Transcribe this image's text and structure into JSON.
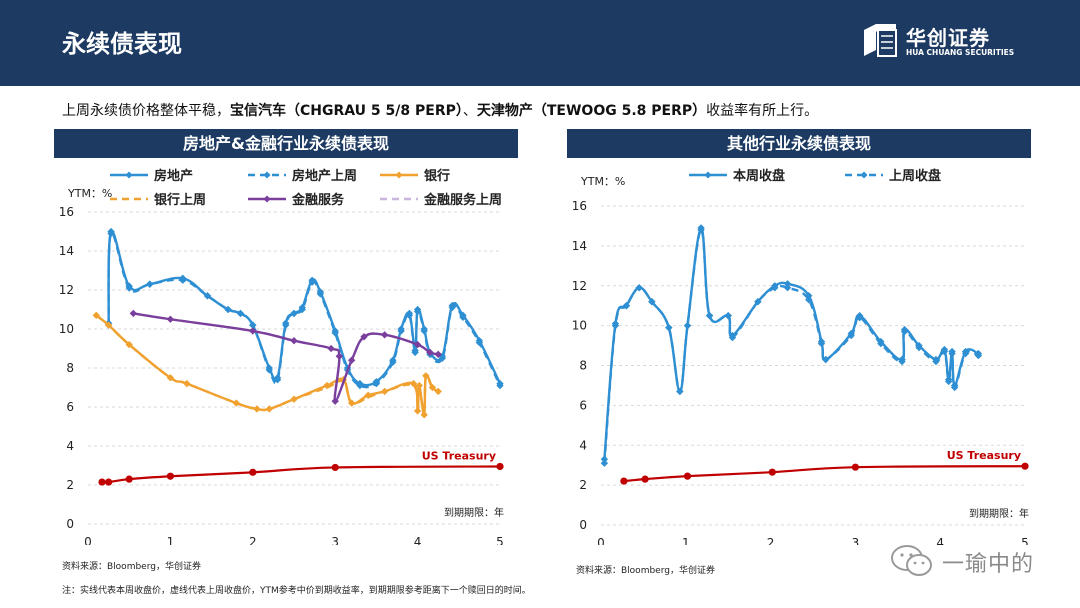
{
  "page": {
    "title": "永续债表现",
    "logo_cn": "华创证券",
    "logo_en": "HUA CHUANG SECURITIES",
    "summary_parts": [
      {
        "text": "上周永续债价格整体平稳，",
        "bold": false
      },
      {
        "text": "宝信汽车（CHGRAU 5 5/8 PERP）",
        "bold": true
      },
      {
        "text": "、",
        "bold": false
      },
      {
        "text": "天津物产（TEWOOG 5.8 PERP）",
        "bold": true
      },
      {
        "text": "收益率有所上行。",
        "bold": false
      }
    ],
    "source_left": "资料来源：Bloomberg，华创证券",
    "source_right": "资料来源：Bloomberg，华创证券",
    "note": "注：实线代表本周收盘价，虚线代表上周收盘价，YTM参考中价到期收益率，到期期限参考距离下一个赎回日的时间。",
    "watermark": "一瑜中的"
  },
  "colors": {
    "header": "#1d3a63",
    "real_estate": "#2e8fd3",
    "bank": "#f0a12f",
    "financial_services": "#7a3e9d",
    "financial_services_prev": "#c8b6dc",
    "treasury": "#c00000"
  },
  "chart_data": [
    {
      "type": "line",
      "title": "房地产&金融行业永续债表现",
      "ylabel": "YTM：%",
      "xlabel": "到期期限：年",
      "xlim": [
        0,
        5
      ],
      "ylim": [
        0,
        16
      ],
      "xticks": [
        0,
        1,
        2,
        3,
        4,
        5
      ],
      "yticks": [
        0,
        2,
        4,
        6,
        8,
        10,
        12,
        14,
        16
      ],
      "grid": "horizontal",
      "legend": [
        {
          "name": "房地产",
          "color": "#2e8fd3",
          "dash": false
        },
        {
          "name": "房地产上周",
          "color": "#2e8fd3",
          "dash": true
        },
        {
          "name": "银行",
          "color": "#f0a12f",
          "dash": false
        },
        {
          "name": "银行上周",
          "color": "#f0a12f",
          "dash": true
        },
        {
          "name": "金融服务",
          "color": "#7a3e9d",
          "dash": false
        },
        {
          "name": "金融服务上周",
          "color": "#c8b6dc",
          "dash": true
        }
      ],
      "annotation": "US Treasury",
      "series": [
        {
          "name": "房地产",
          "color": "#2e8fd3",
          "dash": false,
          "markers": true,
          "points": [
            [
              0.25,
              10.3
            ],
            [
              0.28,
              15.0
            ],
            [
              0.5,
              12.2
            ],
            [
              0.75,
              12.3
            ],
            [
              1.15,
              12.6
            ],
            [
              1.45,
              11.7
            ],
            [
              1.7,
              11.0
            ],
            [
              1.85,
              10.8
            ],
            [
              2.0,
              10.2
            ],
            [
              2.2,
              8.0
            ],
            [
              2.3,
              7.5
            ],
            [
              2.4,
              10.3
            ],
            [
              2.5,
              10.8
            ],
            [
              2.6,
              11.1
            ],
            [
              2.72,
              12.5
            ],
            [
              2.82,
              11.9
            ],
            [
              3.0,
              9.9
            ],
            [
              3.15,
              8.0
            ],
            [
              3.3,
              7.2
            ],
            [
              3.5,
              7.3
            ],
            [
              3.7,
              8.4
            ],
            [
              3.8,
              10.0
            ],
            [
              3.9,
              10.8
            ],
            [
              3.97,
              8.9
            ],
            [
              4.0,
              11.0
            ],
            [
              4.08,
              10.0
            ],
            [
              4.15,
              8.8
            ],
            [
              4.3,
              8.6
            ],
            [
              4.42,
              11.2
            ],
            [
              4.55,
              10.7
            ],
            [
              4.75,
              9.4
            ],
            [
              5.0,
              7.2
            ]
          ]
        },
        {
          "name": "房地产上周",
          "color": "#2e8fd3",
          "dash": true,
          "markers": true,
          "points": [
            [
              0.25,
              10.2
            ],
            [
              0.28,
              14.9
            ],
            [
              0.5,
              12.1
            ],
            [
              0.75,
              12.3
            ],
            [
              1.15,
              12.5
            ],
            [
              1.45,
              11.7
            ],
            [
              1.7,
              11.0
            ],
            [
              1.85,
              10.8
            ],
            [
              2.0,
              10.2
            ],
            [
              2.2,
              7.9
            ],
            [
              2.3,
              7.4
            ],
            [
              2.4,
              10.2
            ],
            [
              2.5,
              10.8
            ],
            [
              2.6,
              11.0
            ],
            [
              2.72,
              12.4
            ],
            [
              2.82,
              11.8
            ],
            [
              3.0,
              9.8
            ],
            [
              3.15,
              7.9
            ],
            [
              3.3,
              7.1
            ],
            [
              3.5,
              7.2
            ],
            [
              3.7,
              8.3
            ],
            [
              3.8,
              9.9
            ],
            [
              3.9,
              10.7
            ],
            [
              3.97,
              8.8
            ],
            [
              4.0,
              10.9
            ],
            [
              4.08,
              9.9
            ],
            [
              4.15,
              8.7
            ],
            [
              4.3,
              8.5
            ],
            [
              4.42,
              11.1
            ],
            [
              4.55,
              10.6
            ],
            [
              4.75,
              9.3
            ],
            [
              5.0,
              7.1
            ]
          ]
        },
        {
          "name": "银行",
          "color": "#f0a12f",
          "dash": false,
          "markers": true,
          "points": [
            [
              0.1,
              10.7
            ],
            [
              0.25,
              10.2
            ],
            [
              0.5,
              9.2
            ],
            [
              1.0,
              7.5
            ],
            [
              1.2,
              7.2
            ],
            [
              1.8,
              6.2
            ],
            [
              2.05,
              5.9
            ],
            [
              2.2,
              5.9
            ],
            [
              2.5,
              6.4
            ],
            [
              2.9,
              7.1
            ],
            [
              3.1,
              7.4
            ],
            [
              3.2,
              6.2
            ],
            [
              3.4,
              6.6
            ],
            [
              3.6,
              6.8
            ],
            [
              3.95,
              7.2
            ],
            [
              4.0,
              5.8
            ],
            [
              4.02,
              7.1
            ],
            [
              4.08,
              5.6
            ],
            [
              4.1,
              7.6
            ],
            [
              4.18,
              7.0
            ],
            [
              4.25,
              6.8
            ]
          ]
        },
        {
          "name": "银行上周",
          "color": "#f0a12f",
          "dash": true,
          "markers": false,
          "points": [
            [
              0.1,
              10.7
            ],
            [
              0.25,
              10.2
            ],
            [
              0.5,
              9.2
            ],
            [
              1.0,
              7.5
            ],
            [
              1.2,
              7.2
            ],
            [
              1.8,
              6.2
            ],
            [
              2.05,
              5.9
            ],
            [
              2.2,
              5.9
            ],
            [
              2.5,
              6.4
            ],
            [
              2.9,
              7.0
            ],
            [
              3.1,
              7.3
            ],
            [
              3.2,
              6.2
            ],
            [
              3.4,
              6.5
            ],
            [
              3.6,
              6.8
            ],
            [
              3.95,
              7.1
            ],
            [
              4.0,
              5.8
            ],
            [
              4.02,
              7.0
            ],
            [
              4.08,
              5.6
            ],
            [
              4.1,
              7.5
            ],
            [
              4.18,
              7.0
            ],
            [
              4.25,
              6.8
            ]
          ]
        },
        {
          "name": "金融服务上周",
          "color": "#c8b6dc",
          "dash": true,
          "markers": false,
          "points": [
            [
              0.55,
              10.8
            ],
            [
              1.0,
              10.5
            ],
            [
              2.0,
              9.9
            ],
            [
              2.5,
              9.4
            ],
            [
              2.95,
              9.0
            ],
            [
              3.05,
              8.6
            ],
            [
              3.0,
              6.3
            ],
            [
              3.2,
              8.4
            ],
            [
              3.35,
              9.6
            ],
            [
              3.6,
              9.7
            ],
            [
              4.0,
              9.2
            ],
            [
              4.15,
              8.8
            ],
            [
              4.25,
              8.7
            ]
          ]
        },
        {
          "name": "金融服务",
          "color": "#7a3e9d",
          "dash": false,
          "markers": true,
          "points": [
            [
              0.55,
              10.8
            ],
            [
              1.0,
              10.5
            ],
            [
              2.0,
              9.9
            ],
            [
              2.5,
              9.4
            ],
            [
              2.95,
              9.0
            ],
            [
              3.05,
              8.6
            ],
            [
              3.0,
              6.3
            ],
            [
              3.2,
              8.4
            ],
            [
              3.35,
              9.6
            ],
            [
              3.6,
              9.7
            ],
            [
              4.0,
              9.2
            ],
            [
              4.15,
              8.8
            ],
            [
              4.25,
              8.7
            ]
          ]
        },
        {
          "name": "US Treasury",
          "color": "#c00000",
          "dash": false,
          "markers": true,
          "label": true,
          "points": [
            [
              0.17,
              2.15
            ],
            [
              0.25,
              2.15
            ],
            [
              0.5,
              2.3
            ],
            [
              1.0,
              2.45
            ],
            [
              2.0,
              2.65
            ],
            [
              3.0,
              2.9
            ],
            [
              5.0,
              2.95
            ]
          ]
        }
      ]
    },
    {
      "type": "line",
      "title": "其他行业永续债表现",
      "ylabel": "YTM：%",
      "xlabel": "到期期限：年",
      "xlim": [
        0,
        5
      ],
      "ylim": [
        0,
        16
      ],
      "xticks": [
        0,
        1,
        2,
        3,
        4,
        5
      ],
      "yticks": [
        0,
        2,
        4,
        6,
        8,
        10,
        12,
        14,
        16
      ],
      "grid": "horizontal",
      "legend": [
        {
          "name": "本周收盘",
          "color": "#2e8fd3",
          "dash": false
        },
        {
          "name": "上周收盘",
          "color": "#2e8fd3",
          "dash": true
        }
      ],
      "annotation": "US Treasury",
      "series": [
        {
          "name": "本周收盘",
          "color": "#2e8fd3",
          "dash": false,
          "markers": true,
          "points": [
            [
              0.04,
              3.3
            ],
            [
              0.17,
              10.1
            ],
            [
              0.3,
              11.0
            ],
            [
              0.45,
              11.9
            ],
            [
              0.6,
              11.2
            ],
            [
              0.8,
              9.9
            ],
            [
              0.93,
              6.7
            ],
            [
              1.02,
              10.0
            ],
            [
              1.18,
              14.9
            ],
            [
              1.28,
              10.5
            ],
            [
              1.5,
              10.5
            ],
            [
              1.55,
              9.5
            ],
            [
              1.85,
              11.2
            ],
            [
              2.05,
              12.0
            ],
            [
              2.2,
              12.1
            ],
            [
              2.45,
              11.5
            ],
            [
              2.6,
              9.2
            ],
            [
              2.65,
              8.3
            ],
            [
              2.95,
              9.6
            ],
            [
              3.05,
              10.5
            ],
            [
              3.3,
              9.2
            ],
            [
              3.55,
              8.3
            ],
            [
              3.58,
              9.8
            ],
            [
              3.75,
              9.0
            ],
            [
              3.95,
              8.3
            ],
            [
              4.05,
              8.8
            ],
            [
              4.1,
              7.3
            ],
            [
              4.14,
              8.7
            ],
            [
              4.17,
              7.0
            ],
            [
              4.3,
              8.7
            ],
            [
              4.45,
              8.6
            ]
          ]
        },
        {
          "name": "上周收盘",
          "color": "#2e8fd3",
          "dash": true,
          "markers": true,
          "points": [
            [
              0.04,
              3.1
            ],
            [
              0.17,
              10.0
            ],
            [
              0.3,
              11.0
            ],
            [
              0.45,
              11.9
            ],
            [
              0.6,
              11.2
            ],
            [
              0.8,
              9.9
            ],
            [
              0.93,
              6.7
            ],
            [
              1.02,
              10.0
            ],
            [
              1.18,
              14.8
            ],
            [
              1.28,
              10.5
            ],
            [
              1.5,
              10.5
            ],
            [
              1.55,
              9.4
            ],
            [
              1.85,
              11.2
            ],
            [
              2.05,
              11.9
            ],
            [
              2.2,
              11.9
            ],
            [
              2.45,
              11.3
            ],
            [
              2.6,
              9.1
            ],
            [
              2.65,
              8.3
            ],
            [
              2.95,
              9.5
            ],
            [
              3.05,
              10.4
            ],
            [
              3.3,
              9.1
            ],
            [
              3.55,
              8.2
            ],
            [
              3.58,
              9.7
            ],
            [
              3.75,
              8.9
            ],
            [
              3.95,
              8.2
            ],
            [
              4.05,
              8.7
            ],
            [
              4.1,
              7.2
            ],
            [
              4.14,
              8.6
            ],
            [
              4.17,
              6.9
            ],
            [
              4.3,
              8.6
            ],
            [
              4.45,
              8.5
            ]
          ]
        },
        {
          "name": "US Treasury",
          "color": "#c00000",
          "dash": false,
          "markers": true,
          "label": true,
          "points": [
            [
              0.27,
              2.2
            ],
            [
              0.52,
              2.3
            ],
            [
              1.02,
              2.45
            ],
            [
              2.02,
              2.65
            ],
            [
              3.0,
              2.9
            ],
            [
              5.0,
              2.95
            ]
          ]
        }
      ]
    }
  ]
}
